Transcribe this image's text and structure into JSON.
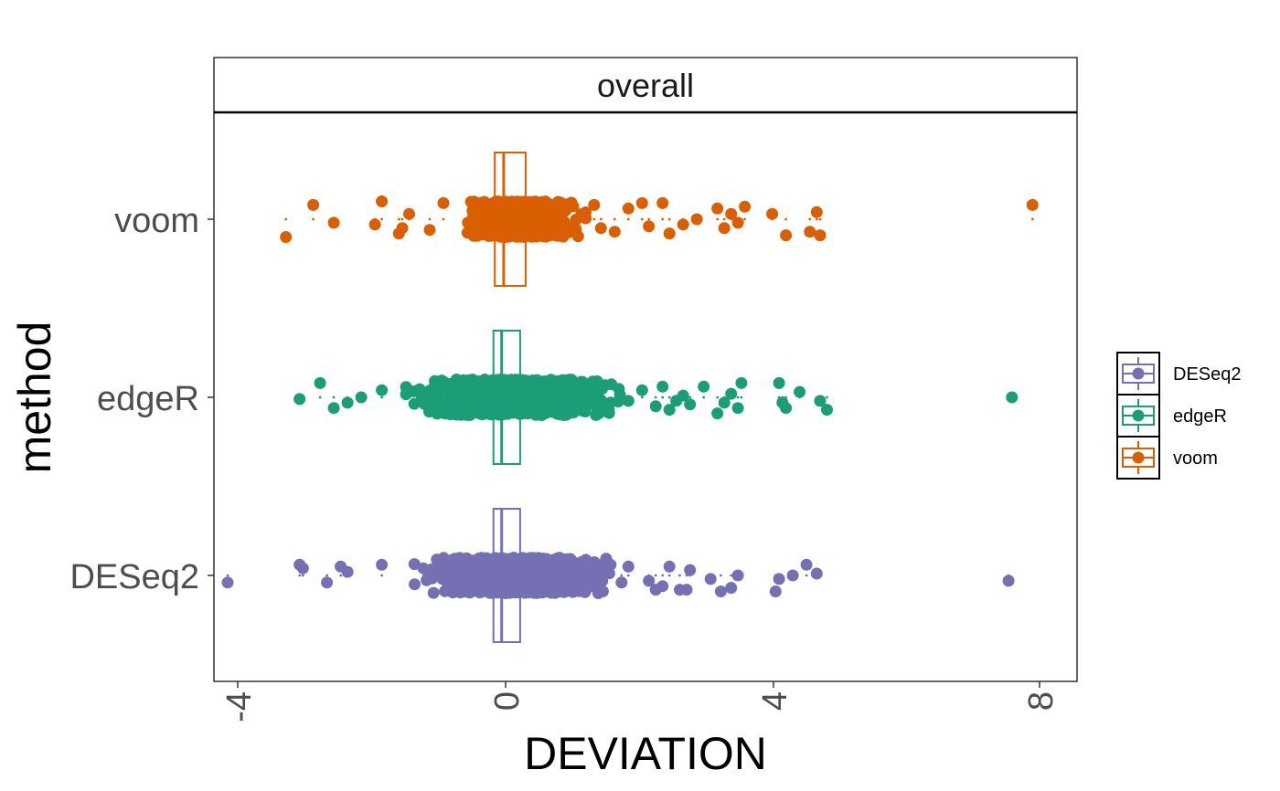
{
  "chart_data": {
    "type": "scatter",
    "subtype": "jittered points with boxplot",
    "facet_label": "overall",
    "xlabel": "DEVIATION",
    "ylabel": "method",
    "xlim": [
      -4.05,
      8.55
    ],
    "x_ticks": [
      "-4",
      "0",
      "4",
      "8"
    ],
    "x_tick_values": [
      -4,
      0,
      4,
      8
    ],
    "categories": [
      "voom",
      "edgeR",
      "DESeq2"
    ],
    "legend": {
      "placement": "right",
      "entries": [
        "DESeq2",
        "edgeR",
        "voom"
      ]
    },
    "colors": {
      "DESeq2": "#7570b3",
      "edgeR": "#1b9e77",
      "voom": "#d95f02"
    },
    "series": [
      {
        "name": "voom",
        "box": {
          "q1": 0.05,
          "median": 0.18,
          "q3": 0.5
        },
        "dense_range": [
          -0.35,
          1.4
        ],
        "outliers": [
          {
            "x": -3.0,
            "dy": 0.1
          },
          {
            "x": -2.6,
            "dy": -0.08
          },
          {
            "x": -2.3,
            "dy": 0.02
          },
          {
            "x": -1.6,
            "dy": -0.1
          },
          {
            "x": -1.7,
            "dy": 0.03
          },
          {
            "x": -1.3,
            "dy": 0.05
          },
          {
            "x": -1.35,
            "dy": 0.08
          },
          {
            "x": -1.2,
            "dy": -0.03
          },
          {
            "x": -0.9,
            "dy": 0.06
          },
          {
            "x": -0.7,
            "dy": -0.09
          },
          {
            "x": 1.5,
            "dy": -0.08
          },
          {
            "x": 1.6,
            "dy": 0.05
          },
          {
            "x": 1.8,
            "dy": 0.07
          },
          {
            "x": 2.0,
            "dy": -0.06
          },
          {
            "x": 2.2,
            "dy": -0.09
          },
          {
            "x": 2.3,
            "dy": 0.04
          },
          {
            "x": 2.5,
            "dy": -0.09
          },
          {
            "x": 2.6,
            "dy": 0.08
          },
          {
            "x": 2.8,
            "dy": 0.03
          },
          {
            "x": 3.0,
            "dy": 0.0
          },
          {
            "x": 3.3,
            "dy": -0.06
          },
          {
            "x": 3.4,
            "dy": 0.05
          },
          {
            "x": 3.5,
            "dy": -0.03
          },
          {
            "x": 3.6,
            "dy": 0.02
          },
          {
            "x": 3.7,
            "dy": -0.07
          },
          {
            "x": 4.1,
            "dy": -0.03
          },
          {
            "x": 4.3,
            "dy": 0.09
          },
          {
            "x": 4.65,
            "dy": 0.07
          },
          {
            "x": 4.8,
            "dy": 0.09
          },
          {
            "x": 4.75,
            "dy": -0.04
          },
          {
            "x": 7.9,
            "dy": -0.08
          }
        ]
      },
      {
        "name": "edgeR",
        "box": {
          "q1": 0.03,
          "median": 0.15,
          "q3": 0.42
        },
        "dense_range": [
          -1.25,
          1.9
        ],
        "outliers": [
          {
            "x": -2.8,
            "dy": 0.01
          },
          {
            "x": -2.5,
            "dy": -0.08
          },
          {
            "x": -2.3,
            "dy": 0.06
          },
          {
            "x": -2.1,
            "dy": 0.03
          },
          {
            "x": -1.9,
            "dy": 0.0
          },
          {
            "x": -1.6,
            "dy": -0.04
          },
          {
            "x": 2.0,
            "dy": 0.02
          },
          {
            "x": 2.2,
            "dy": -0.04
          },
          {
            "x": 2.4,
            "dy": 0.05
          },
          {
            "x": 2.5,
            "dy": -0.06
          },
          {
            "x": 2.6,
            "dy": 0.07
          },
          {
            "x": 2.7,
            "dy": 0.02
          },
          {
            "x": 2.8,
            "dy": -0.01
          },
          {
            "x": 2.9,
            "dy": 0.04
          },
          {
            "x": 3.1,
            "dy": -0.06
          },
          {
            "x": 3.3,
            "dy": 0.09
          },
          {
            "x": 3.4,
            "dy": 0.03
          },
          {
            "x": 3.5,
            "dy": -0.02
          },
          {
            "x": 3.6,
            "dy": 0.06
          },
          {
            "x": 3.65,
            "dy": -0.08
          },
          {
            "x": 4.2,
            "dy": -0.08
          },
          {
            "x": 4.25,
            "dy": 0.03
          },
          {
            "x": 4.3,
            "dy": 0.06
          },
          {
            "x": 4.5,
            "dy": -0.03
          },
          {
            "x": 4.8,
            "dy": 0.02
          },
          {
            "x": 4.9,
            "dy": 0.07
          },
          {
            "x": 7.6,
            "dy": 0.0
          }
        ]
      },
      {
        "name": "DESeq2",
        "box": {
          "q1": 0.03,
          "median": 0.15,
          "q3": 0.42
        },
        "dense_range": [
          -1.35,
          1.75
        ],
        "outliers": [
          {
            "x": -3.85,
            "dy": 0.04
          },
          {
            "x": -2.8,
            "dy": -0.06
          },
          {
            "x": -2.75,
            "dy": -0.04
          },
          {
            "x": -2.4,
            "dy": 0.04
          },
          {
            "x": -2.2,
            "dy": -0.05
          },
          {
            "x": -2.1,
            "dy": -0.02
          },
          {
            "x": -1.6,
            "dy": -0.06
          },
          {
            "x": 1.6,
            "dy": 0.08
          },
          {
            "x": 1.9,
            "dy": 0.04
          },
          {
            "x": 2.0,
            "dy": -0.05
          },
          {
            "x": 2.3,
            "dy": 0.03
          },
          {
            "x": 2.4,
            "dy": 0.08
          },
          {
            "x": 2.5,
            "dy": 0.06
          },
          {
            "x": 2.6,
            "dy": -0.05
          },
          {
            "x": 2.75,
            "dy": 0.08
          },
          {
            "x": 2.85,
            "dy": 0.08
          },
          {
            "x": 2.9,
            "dy": -0.03
          },
          {
            "x": 3.2,
            "dy": 0.02
          },
          {
            "x": 3.35,
            "dy": 0.09
          },
          {
            "x": 3.5,
            "dy": 0.07
          },
          {
            "x": 3.6,
            "dy": 0.0
          },
          {
            "x": 4.15,
            "dy": 0.09
          },
          {
            "x": 4.2,
            "dy": 0.02
          },
          {
            "x": 4.4,
            "dy": 0.0
          },
          {
            "x": 4.6,
            "dy": -0.06
          },
          {
            "x": 4.75,
            "dy": -0.01
          },
          {
            "x": 7.55,
            "dy": 0.03
          }
        ]
      }
    ]
  }
}
